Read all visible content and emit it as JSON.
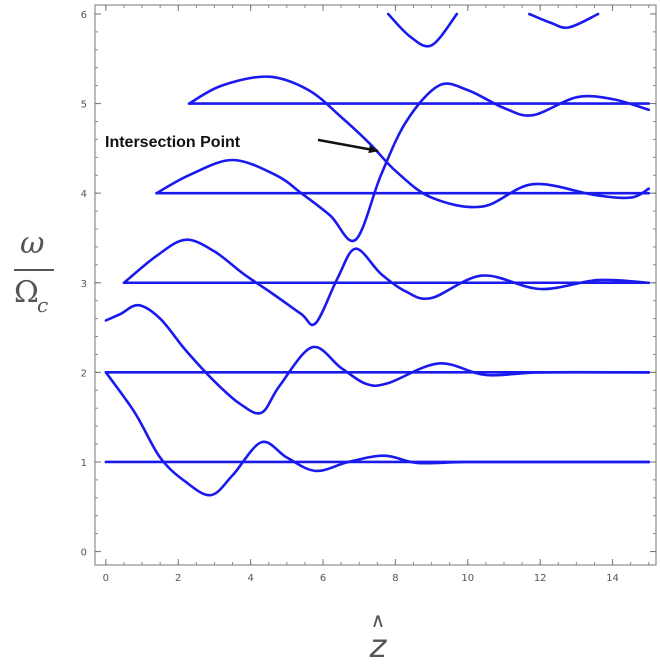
{
  "chart_data": {
    "type": "line",
    "title": "",
    "ylabel": {
      "numerator": "ω",
      "denominator": "Ω",
      "subscript": "c"
    },
    "xlabel": {
      "hat": "∧",
      "variable": "z"
    },
    "xlim": [
      -0.3,
      15.2
    ],
    "ylim": [
      -0.15,
      6.1
    ],
    "xticks": [
      0,
      2,
      4,
      6,
      8,
      10,
      12,
      14
    ],
    "yticks": [
      0,
      1,
      2,
      3,
      4,
      5,
      6
    ],
    "grid": false,
    "line_color": "#1a1aee",
    "annotation": {
      "text": "Intersection Point",
      "arrow_to": [
        7.6,
        4.45
      ]
    },
    "series": [
      {
        "points": [
          [
            0,
            1
          ],
          [
            15,
            1
          ]
        ]
      },
      {
        "points": [
          [
            0,
            2
          ],
          [
            15,
            2
          ]
        ]
      },
      {
        "points": [
          [
            0.5,
            3
          ],
          [
            15,
            3
          ]
        ]
      },
      {
        "points": [
          [
            1.4,
            4
          ],
          [
            15,
            4
          ]
        ]
      },
      {
        "points": [
          [
            2.3,
            5
          ],
          [
            15,
            5
          ]
        ]
      },
      {
        "points": [
          [
            0,
            2
          ],
          [
            0.8,
            1.55
          ],
          [
            1.5,
            1.05
          ],
          [
            2.2,
            0.78
          ],
          [
            2.9,
            0.63
          ],
          [
            3.5,
            0.85
          ],
          [
            4.3,
            1.22
          ],
          [
            5.0,
            1.05
          ],
          [
            5.8,
            0.9
          ],
          [
            6.7,
            1.0
          ],
          [
            7.7,
            1.07
          ],
          [
            8.6,
            0.99
          ],
          [
            10,
            1.0
          ],
          [
            12,
            1.0
          ],
          [
            15,
            1.0
          ]
        ]
      },
      {
        "points": [
          [
            0,
            2.58
          ],
          [
            0.4,
            2.65
          ],
          [
            0.9,
            2.75
          ],
          [
            1.5,
            2.6
          ],
          [
            2.2,
            2.25
          ],
          [
            3.0,
            1.9
          ],
          [
            3.7,
            1.65
          ],
          [
            4.3,
            1.55
          ],
          [
            4.8,
            1.85
          ],
          [
            5.7,
            2.28
          ],
          [
            6.5,
            2.05
          ],
          [
            7.2,
            1.87
          ],
          [
            7.8,
            1.88
          ],
          [
            9.2,
            2.1
          ],
          [
            10.5,
            1.97
          ],
          [
            12,
            2.0
          ],
          [
            15,
            2.0
          ]
        ]
      },
      {
        "points": [
          [
            0.5,
            3.0
          ],
          [
            1.4,
            3.3
          ],
          [
            2.2,
            3.48
          ],
          [
            3.0,
            3.35
          ],
          [
            3.8,
            3.1
          ],
          [
            4.6,
            2.88
          ],
          [
            5.4,
            2.65
          ],
          [
            5.8,
            2.55
          ],
          [
            6.4,
            3.05
          ],
          [
            6.9,
            3.38
          ],
          [
            7.6,
            3.1
          ],
          [
            8.3,
            2.9
          ],
          [
            9.0,
            2.83
          ],
          [
            10.4,
            3.08
          ],
          [
            12.0,
            2.93
          ],
          [
            13.6,
            3.03
          ],
          [
            15,
            3.0
          ]
        ]
      },
      {
        "points": [
          [
            1.4,
            4.0
          ],
          [
            2.3,
            4.2
          ],
          [
            3.5,
            4.37
          ],
          [
            4.7,
            4.2
          ],
          [
            5.4,
            4.0
          ],
          [
            6.2,
            3.75
          ],
          [
            6.9,
            3.48
          ],
          [
            7.6,
            4.2
          ],
          [
            8.3,
            4.8
          ],
          [
            9.2,
            5.2
          ],
          [
            10,
            5.15
          ],
          [
            11,
            4.95
          ],
          [
            11.8,
            4.87
          ],
          [
            13,
            5.07
          ],
          [
            14.0,
            5.05
          ],
          [
            15,
            4.93
          ]
        ]
      },
      {
        "points": [
          [
            2.3,
            5.0
          ],
          [
            3.2,
            5.2
          ],
          [
            4.5,
            5.3
          ],
          [
            5.6,
            5.15
          ],
          [
            6.5,
            4.85
          ],
          [
            7.3,
            4.55
          ],
          [
            8.0,
            4.25
          ],
          [
            9.0,
            3.95
          ],
          [
            10.4,
            3.85
          ],
          [
            11.8,
            4.1
          ],
          [
            13.5,
            3.98
          ],
          [
            14.5,
            3.95
          ],
          [
            15,
            4.05
          ]
        ]
      },
      {
        "points": [
          [
            7.8,
            6.0
          ],
          [
            8.4,
            5.75
          ],
          [
            9.0,
            5.65
          ],
          [
            9.7,
            6.0
          ]
        ]
      },
      {
        "points": [
          [
            11.7,
            6.0
          ],
          [
            12.3,
            5.9
          ],
          [
            12.8,
            5.85
          ],
          [
            13.6,
            6.0
          ]
        ]
      }
    ]
  }
}
